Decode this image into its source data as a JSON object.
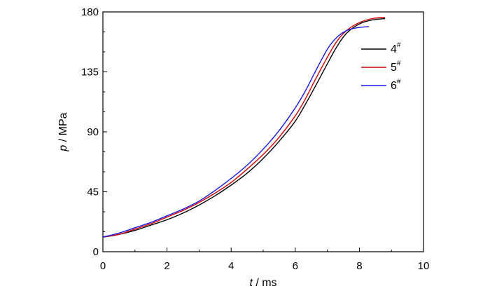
{
  "chart_data": {
    "type": "line",
    "xlabel": {
      "var": "t",
      "unit": " / ms"
    },
    "ylabel": {
      "var": "p",
      "unit": " / MPa"
    },
    "xlim": [
      0,
      10
    ],
    "ylim": [
      0,
      180
    ],
    "xticks": [
      "0",
      "2",
      "4",
      "6",
      "8",
      "10"
    ],
    "yticks": [
      "0",
      "45",
      "90",
      "135",
      "180"
    ],
    "grid": false,
    "legend_position": "top-right",
    "series": [
      {
        "name": "4",
        "name_sup": "#",
        "color": "#000000",
        "x": [
          0.0,
          0.5,
          1.0,
          1.5,
          2.0,
          2.5,
          3.0,
          3.5,
          4.0,
          4.5,
          5.0,
          5.5,
          6.0,
          6.3,
          6.6,
          7.0,
          7.3,
          7.6,
          8.0,
          8.4,
          8.8
        ],
        "y": [
          11,
          13,
          16,
          20,
          24,
          29,
          35,
          42,
          50,
          59,
          70,
          83,
          98,
          110,
          123,
          141,
          154,
          164,
          171,
          174,
          175
        ]
      },
      {
        "name": "5",
        "name_sup": "#",
        "color": "#d40000",
        "x": [
          0.0,
          0.5,
          1.0,
          1.5,
          2.0,
          2.5,
          3.0,
          3.5,
          4.0,
          4.5,
          5.0,
          5.5,
          6.0,
          6.3,
          6.6,
          7.0,
          7.3,
          7.6,
          8.0,
          8.4,
          8.8
        ],
        "y": [
          11,
          13,
          17,
          21,
          26,
          31,
          37,
          44,
          52,
          62,
          73,
          86,
          102,
          114,
          128,
          146,
          158,
          166,
          172,
          175,
          176
        ]
      },
      {
        "name": "6",
        "name_sup": "#",
        "color": "#1a1ae6",
        "x": [
          0.0,
          0.5,
          1.0,
          1.5,
          2.0,
          2.5,
          3.0,
          3.5,
          4.0,
          4.5,
          5.0,
          5.5,
          6.0,
          6.3,
          6.6,
          7.0,
          7.3,
          7.6,
          7.9,
          8.3
        ],
        "y": [
          11,
          14,
          18,
          22,
          27,
          32,
          38,
          46,
          55,
          65,
          77,
          91,
          108,
          120,
          134,
          152,
          161,
          166,
          168,
          169
        ]
      }
    ]
  }
}
